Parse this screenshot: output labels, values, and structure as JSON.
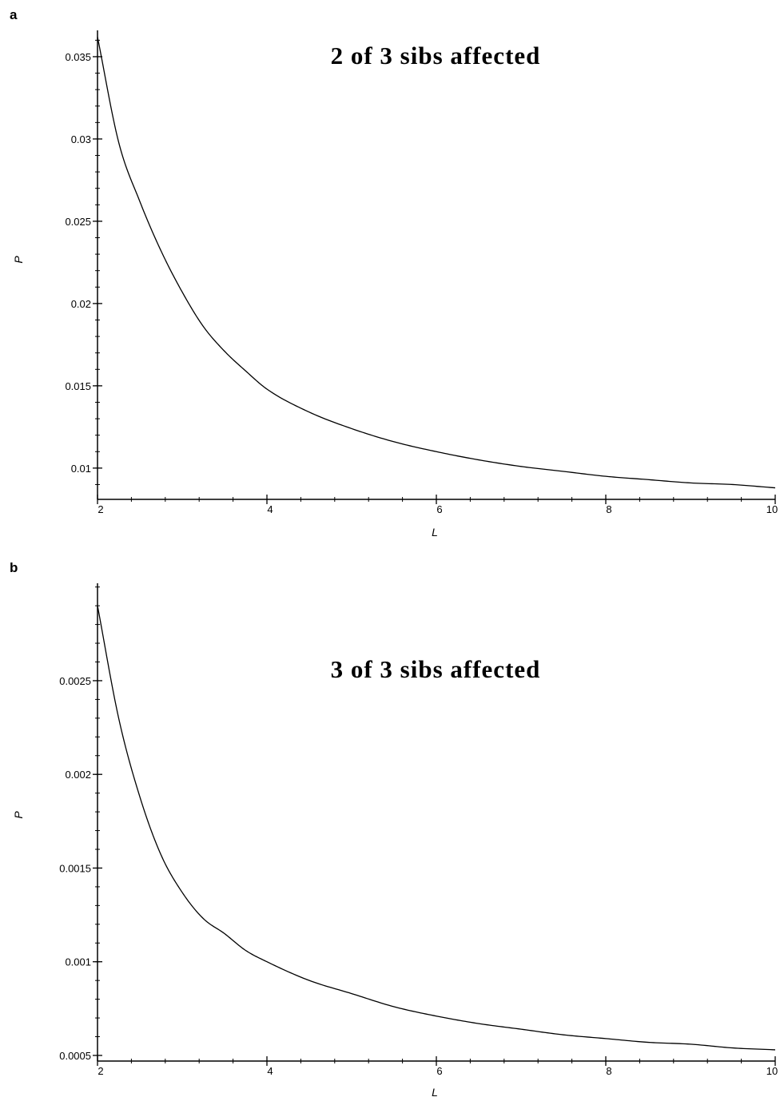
{
  "chart_data": [
    {
      "type": "line",
      "panel_label": "a",
      "title": "2 of 3 sibs affected",
      "xlabel": "L",
      "ylabel": "P",
      "xlim": [
        2,
        10
      ],
      "ylim": [
        0.0081,
        0.0366
      ],
      "x_ticks": [
        2,
        4,
        6,
        8,
        10
      ],
      "x_tick_labels": [
        "2",
        "4",
        "6",
        "8",
        "10"
      ],
      "y_ticks": [
        0.01,
        0.015,
        0.02,
        0.025,
        0.03,
        0.035
      ],
      "y_tick_labels": [
        "0.01",
        "0.015",
        "0.02",
        "0.025",
        "0.03",
        "0.035"
      ],
      "grid": false,
      "series": [
        {
          "x": [
            2,
            2.25,
            2.5,
            2.75,
            3,
            3.25,
            3.5,
            3.75,
            4,
            4.5,
            5,
            5.5,
            6,
            6.5,
            7,
            7.5,
            8,
            8.5,
            9,
            9.5,
            10
          ],
          "values": [
            0.0362,
            0.0298,
            0.0262,
            0.0232,
            0.0207,
            0.0186,
            0.0171,
            0.0159,
            0.0148,
            0.0134,
            0.0124,
            0.0116,
            0.011,
            0.0105,
            0.0101,
            0.0098,
            0.0095,
            0.0093,
            0.0091,
            0.009,
            0.0088
          ]
        }
      ]
    },
    {
      "type": "line",
      "panel_label": "b",
      "title": "3 of 3 sibs affected",
      "xlabel": "L",
      "ylabel": "P",
      "xlim": [
        2,
        10
      ],
      "ylim": [
        0.00047,
        0.00302
      ],
      "x_ticks": [
        2,
        4,
        6,
        8,
        10
      ],
      "x_tick_labels": [
        "2",
        "4",
        "6",
        "8",
        "10"
      ],
      "y_ticks": [
        0.0005,
        0.001,
        0.0015,
        0.002,
        0.0025
      ],
      "y_tick_labels": [
        "0.0005",
        "0.001",
        "0.0015",
        "0.002",
        "0.0025"
      ],
      "grid": false,
      "series": [
        {
          "x": [
            2,
            2.25,
            2.5,
            2.75,
            3,
            3.25,
            3.5,
            3.75,
            4,
            4.5,
            5,
            5.5,
            6,
            6.5,
            7,
            7.5,
            8,
            8.5,
            9,
            9.5,
            10
          ],
          "values": [
            0.0029,
            0.0023,
            0.00188,
            0.00157,
            0.00137,
            0.00123,
            0.00115,
            0.00106,
            0.001,
            0.0009,
            0.00083,
            0.00076,
            0.00071,
            0.00067,
            0.00064,
            0.00061,
            0.00059,
            0.00057,
            0.00056,
            0.00054,
            0.00053
          ]
        }
      ]
    }
  ]
}
